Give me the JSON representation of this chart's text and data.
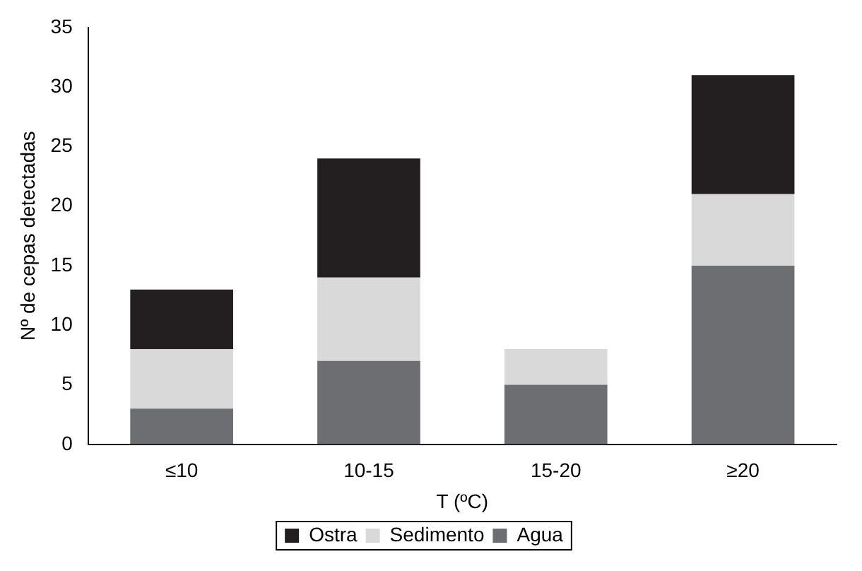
{
  "chart_data": {
    "type": "bar",
    "stacked": true,
    "xlabel": "T (ºC)",
    "ylabel": "Nº de cepas detectadas",
    "categories": [
      "≤10",
      "10-15",
      "15-20",
      "≥20"
    ],
    "series": [
      {
        "name": "Agua",
        "color": "#6d6e71",
        "values": [
          3,
          7,
          5,
          15
        ]
      },
      {
        "name": "Sedimento",
        "color": "#d9d9d9",
        "values": [
          5,
          7,
          3,
          6
        ]
      },
      {
        "name": "Ostra",
        "color": "#231f20",
        "values": [
          5,
          10,
          0,
          10
        ]
      }
    ],
    "ylim": [
      0,
      35
    ],
    "yticks": [
      0,
      5,
      10,
      15,
      20,
      25,
      30,
      35
    ],
    "grid": false,
    "legend": "bottom"
  }
}
